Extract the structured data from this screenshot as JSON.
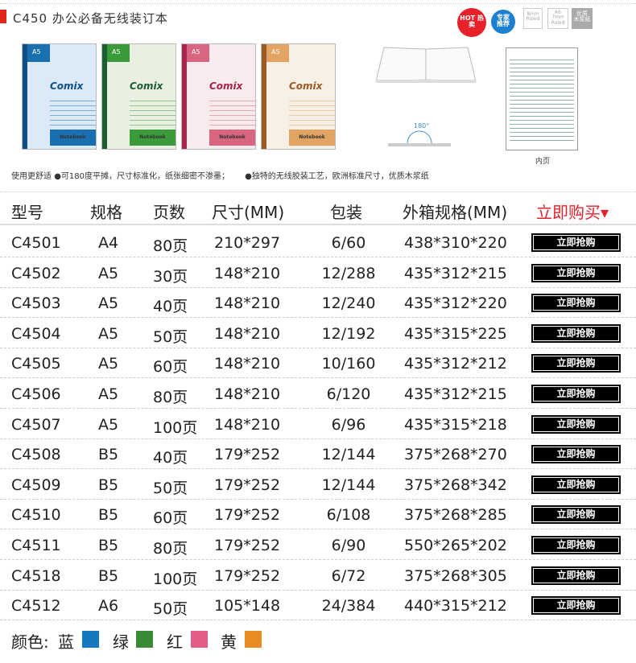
{
  "header": {
    "title": "C450  办公必备无线装订本",
    "badges": [
      "HOT 热卖",
      "专家推荐",
      "8mm Ruled",
      "A6 7mm Ruled",
      "优质 木浆纸"
    ]
  },
  "covers": [
    {
      "size": "A5",
      "brand": "Comix",
      "label": "Notebook",
      "color": "#1a6fb0",
      "bg": "#dce9f6",
      "spine": "#0e4f8a"
    },
    {
      "size": "A5",
      "brand": "Comix",
      "label": "Notebook",
      "color": "#3b9a3a",
      "bg": "#e9efe1",
      "spine": "#1d5e30"
    },
    {
      "size": "A5",
      "brand": "Comix",
      "label": "Notebook",
      "color": "#d9667e",
      "bg": "#f7ebee",
      "spine": "#a8244a"
    },
    {
      "size": "A5",
      "brand": "Comix",
      "label": "Notebook",
      "color": "#e3a463",
      "bg": "#f8f0e4",
      "spine": "#9a5a25"
    }
  ],
  "illustrations": {
    "angle": "180°",
    "inner_page_caption": "内页"
  },
  "features": {
    "label": "使用更舒适",
    "item1": "●可180度平摊，尺寸标准化，纸张细密不渗墨；",
    "item2": "●独特的无线胶装工艺，欧洲标准尺寸，优质木浆纸"
  },
  "table": {
    "headers": [
      "型号",
      "规格",
      "页数",
      "尺寸(MM)",
      "包装",
      "外箱规格(MM)",
      "立即购买▾"
    ],
    "buy_label": "立即抢购",
    "rows": [
      [
        "C4501",
        "A4",
        "80页",
        "210*297",
        "6/60",
        "438*310*220"
      ],
      [
        "C4502",
        "A5",
        "30页",
        "148*210",
        "12/288",
        "435*312*215"
      ],
      [
        "C4503",
        "A5",
        "40页",
        "148*210",
        "12/240",
        "435*312*220"
      ],
      [
        "C4504",
        "A5",
        "50页",
        "148*210",
        "12/192",
        "435*315*225"
      ],
      [
        "C4505",
        "A5",
        "60页",
        "148*210",
        "10/160",
        "435*312*212"
      ],
      [
        "C4506",
        "A5",
        "80页",
        "148*210",
        "6/120",
        "435*312*215"
      ],
      [
        "C4507",
        "A5",
        "100页",
        "148*210",
        "6/96",
        "435*315*218"
      ],
      [
        "C4508",
        "B5",
        "40页",
        "179*252",
        "12/144",
        "375*268*270"
      ],
      [
        "C4509",
        "B5",
        "50页",
        "179*252",
        "12/144",
        "375*268*342"
      ],
      [
        "C4510",
        "B5",
        "60页",
        "179*252",
        "6/108",
        "375*268*285"
      ],
      [
        "C4511",
        "B5",
        "80页",
        "179*252",
        "6/90",
        "550*265*202"
      ],
      [
        "C4518",
        "B5",
        "100页",
        "179*252",
        "6/72",
        "375*268*305"
      ],
      [
        "C4512",
        "A6",
        "50页",
        "105*148",
        "24/384",
        "440*315*212"
      ]
    ]
  },
  "colors": {
    "label": "颜色:",
    "options": [
      {
        "name": "蓝",
        "hex": "#1479bd"
      },
      {
        "name": "绿",
        "hex": "#3a8a36"
      },
      {
        "name": "红",
        "hex": "#e35d86"
      },
      {
        "name": "黄",
        "hex": "#ea8a25"
      }
    ]
  },
  "accent": "#e8202a"
}
